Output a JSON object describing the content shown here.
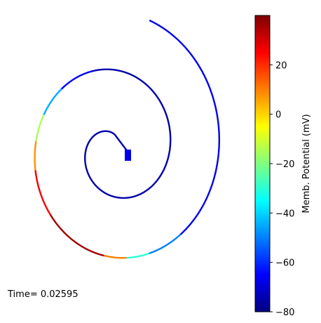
{
  "chart_data": {
    "type": "line",
    "title": "",
    "grid": false,
    "axes_visible": false,
    "annotation": "Time= 0.02595",
    "colormap": "jet",
    "colorbar": {
      "label": "Memb. Potential (mV)",
      "range": [
        -80,
        40
      ],
      "ticks": [
        -80,
        -60,
        -40,
        -20,
        0,
        20
      ]
    },
    "series": [
      {
        "description": "membrane potential along a spiral-shaped neuron",
        "segments": [
          {
            "start_fraction": 0.0,
            "end_fraction": 0.54,
            "potential_mV": -75
          },
          {
            "start_fraction": 0.54,
            "end_fraction": 0.58,
            "potential_mV": -66
          },
          {
            "start_fraction": 0.58,
            "end_fraction": 0.61,
            "potential_mV": -45
          },
          {
            "start_fraction": 0.61,
            "end_fraction": 0.635,
            "potential_mV": -15
          },
          {
            "start_fraction": 0.635,
            "end_fraction": 0.66,
            "potential_mV": 8
          },
          {
            "start_fraction": 0.66,
            "end_fraction": 0.7,
            "potential_mV": 26
          },
          {
            "start_fraction": 0.7,
            "end_fraction": 0.76,
            "potential_mV": 36
          },
          {
            "start_fraction": 0.76,
            "end_fraction": 0.78,
            "potential_mV": 10
          },
          {
            "start_fraction": 0.78,
            "end_fraction": 0.8,
            "potential_mV": -30
          },
          {
            "start_fraction": 0.8,
            "end_fraction": 0.83,
            "potential_mV": -50
          },
          {
            "start_fraction": 0.83,
            "end_fraction": 1.0,
            "potential_mV": -67
          }
        ]
      }
    ],
    "soma": {
      "potential_mV": -68
    }
  }
}
